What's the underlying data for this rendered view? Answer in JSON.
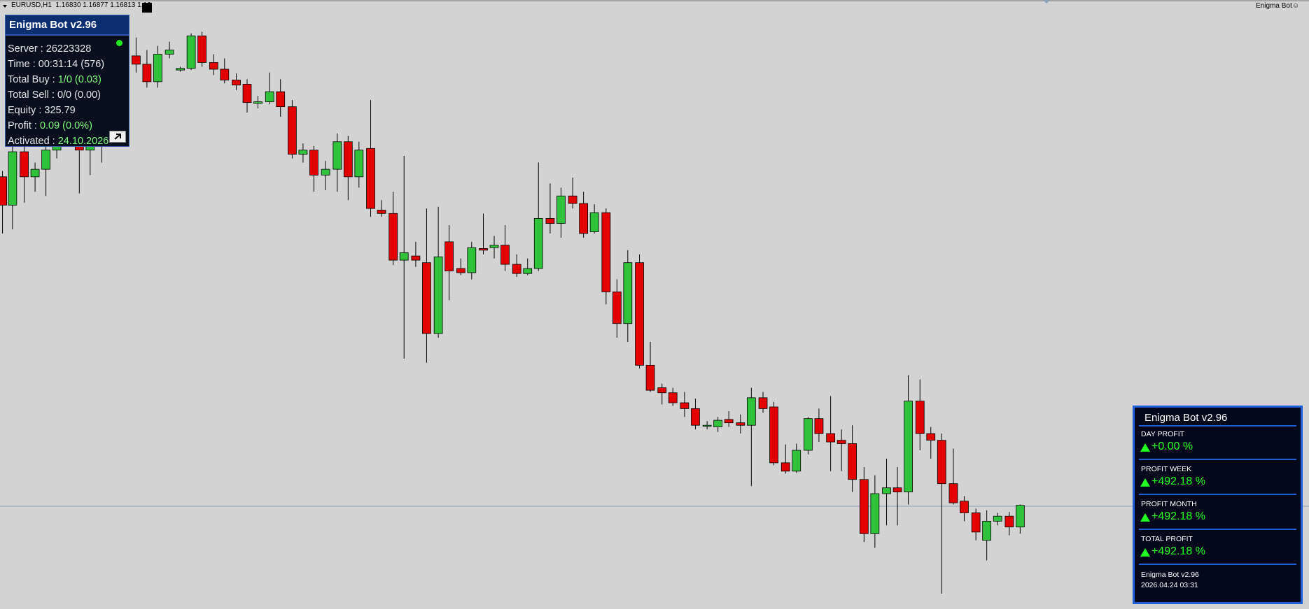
{
  "chart_header": {
    "symbol": "EURUSD,H1",
    "quote": "1.16830 1.16877 1.16813 1.16"
  },
  "corner_label": "Enigma Bot",
  "info_panel": {
    "title": "Enigma Bot v2.96",
    "rows": [
      {
        "label": "Server :",
        "value": "26223328"
      },
      {
        "label": "Time :",
        "value": "00:31:14 (576)"
      },
      {
        "label": "Total Buy :",
        "value": "1/0 (0.03)"
      },
      {
        "label": "Total Sell :",
        "value": "0/0 (0.00)"
      },
      {
        "label": "Equity :",
        "value": "325.79"
      },
      {
        "label": "Profit :",
        "value": "0.09 (0.0%)"
      },
      {
        "label": "Activated :",
        "value": "24.10.2026"
      }
    ]
  },
  "profit_panel": {
    "title": "Enigma Bot v2.96",
    "stats": [
      {
        "label": "DAY PROFIT",
        "value": "+0.00 %"
      },
      {
        "label": "PROFIT WEEK",
        "value": "+492.18 %"
      },
      {
        "label": "PROFIT MONTH",
        "value": "+492.18 %"
      },
      {
        "label": "TOTAL PROFIT",
        "value": "+492.18 %"
      }
    ],
    "footer": [
      "Enigma Bot v2.96",
      "2026.04.24 03:31"
    ]
  }
}
